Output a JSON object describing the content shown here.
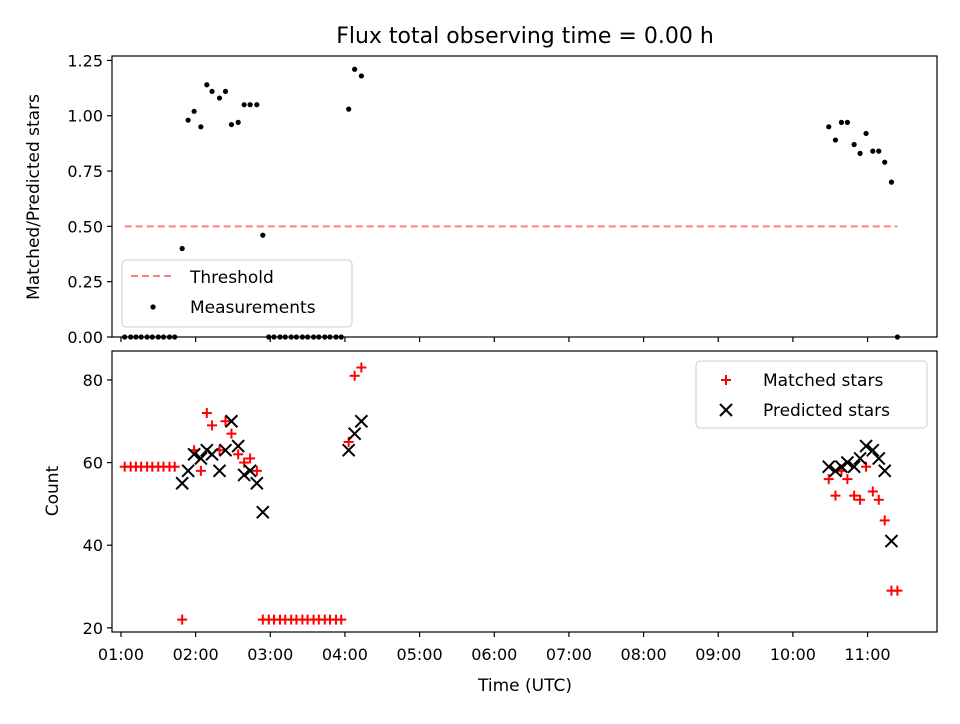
{
  "title": "Flux total observing time = 0.00 h",
  "colors": {
    "threshold": "#ff8080",
    "measurements": "#000000",
    "matched": "#ff0000",
    "predicted": "#000000",
    "axes": "#000000",
    "legend_border": "#cccccc"
  },
  "chart_data": [
    {
      "type": "scatter",
      "ylabel": "Matched/Predicted stars",
      "xlabel": "",
      "xlim": [
        0.88,
        11.93
      ],
      "ylim": [
        0,
        1.27
      ],
      "yticks": [
        0,
        0.25,
        0.5,
        0.75,
        1.0,
        1.25
      ],
      "ytick_labels": [
        "0.00",
        "0.25",
        "0.50",
        "0.75",
        "1.00",
        "1.25"
      ],
      "xticks": [
        1,
        2,
        3,
        4,
        5,
        6,
        7,
        8,
        9,
        10,
        11
      ],
      "grid": false,
      "legend_position": "lower-left",
      "series": [
        {
          "name": "Threshold",
          "type": "line",
          "style": "dashed",
          "x": [
            1.05,
            11.4
          ],
          "y": [
            0.5,
            0.5
          ]
        },
        {
          "name": "Measurements",
          "type": "scatter",
          "marker": "dot",
          "x": [
            1.05,
            1.13,
            1.2,
            1.27,
            1.35,
            1.42,
            1.5,
            1.57,
            1.65,
            1.72,
            1.82,
            1.9,
            1.98,
            2.07,
            2.15,
            2.22,
            2.32,
            2.4,
            2.48,
            2.57,
            2.65,
            2.73,
            2.82,
            2.9,
            2.98,
            3.05,
            3.13,
            3.2,
            3.28,
            3.35,
            3.43,
            3.5,
            3.58,
            3.65,
            3.73,
            3.8,
            3.88,
            3.95,
            4.05,
            4.13,
            4.22,
            10.48,
            10.57,
            10.65,
            10.73,
            10.82,
            10.9,
            10.98,
            11.07,
            11.15,
            11.23,
            11.32,
            11.4
          ],
          "y": [
            0,
            0,
            0,
            0,
            0,
            0,
            0,
            0,
            0,
            0,
            0.4,
            0.98,
            1.02,
            0.95,
            1.14,
            1.11,
            1.08,
            1.11,
            0.96,
            0.97,
            1.05,
            1.05,
            1.05,
            0.46,
            0,
            0,
            0,
            0,
            0,
            0,
            0,
            0,
            0,
            0,
            0,
            0,
            0,
            0,
            1.03,
            1.21,
            1.18,
            0.95,
            0.89,
            0.97,
            0.97,
            0.87,
            0.83,
            0.92,
            0.84,
            0.84,
            0.79,
            0.7,
            0
          ]
        }
      ]
    },
    {
      "type": "scatter",
      "xlabel": "Time (UTC)",
      "ylabel": "Count",
      "xlim": [
        0.88,
        11.93
      ],
      "ylim": [
        19,
        87
      ],
      "yticks": [
        20,
        40,
        60,
        80
      ],
      "ytick_labels": [
        "20",
        "40",
        "60",
        "80"
      ],
      "xticks": [
        1,
        2,
        3,
        4,
        5,
        6,
        7,
        8,
        9,
        10,
        11
      ],
      "xtick_labels": [
        "01:00",
        "02:00",
        "03:00",
        "04:00",
        "05:00",
        "06:00",
        "07:00",
        "08:00",
        "09:00",
        "10:00",
        "11:00"
      ],
      "grid": false,
      "legend_position": "upper-right",
      "series": [
        {
          "name": "Matched stars",
          "marker": "plus",
          "x": [
            1.05,
            1.13,
            1.2,
            1.27,
            1.35,
            1.42,
            1.5,
            1.57,
            1.65,
            1.72,
            1.82,
            1.98,
            2.07,
            2.15,
            2.22,
            2.32,
            2.4,
            2.48,
            2.57,
            2.65,
            2.73,
            2.82,
            2.9,
            2.98,
            3.05,
            3.13,
            3.2,
            3.28,
            3.35,
            3.43,
            3.5,
            3.58,
            3.65,
            3.73,
            3.8,
            3.88,
            3.95,
            4.05,
            4.13,
            4.22,
            10.48,
            10.57,
            10.65,
            10.73,
            10.82,
            10.9,
            10.98,
            11.07,
            11.15,
            11.23,
            11.32,
            11.4
          ],
          "y": [
            59,
            59,
            59,
            59,
            59,
            59,
            59,
            59,
            59,
            59,
            22,
            63,
            58,
            72,
            69,
            63,
            70,
            67,
            62,
            60,
            61,
            58,
            22,
            22,
            22,
            22,
            22,
            22,
            22,
            22,
            22,
            22,
            22,
            22,
            22,
            22,
            22,
            65,
            81,
            83,
            56,
            52,
            58,
            56,
            52,
            51,
            59,
            53,
            51,
            46,
            29,
            29
          ]
        },
        {
          "name": "Predicted stars",
          "marker": "x",
          "x": [
            1.82,
            1.9,
            1.98,
            2.07,
            2.15,
            2.22,
            2.32,
            2.4,
            2.48,
            2.57,
            2.65,
            2.73,
            2.82,
            2.9,
            4.05,
            4.13,
            4.22,
            10.48,
            10.57,
            10.65,
            10.73,
            10.82,
            10.9,
            10.98,
            11.07,
            11.15,
            11.23,
            11.32
          ],
          "y": [
            55,
            58,
            62,
            61,
            63,
            62,
            58,
            63,
            70,
            64,
            57,
            58,
            55,
            48,
            63,
            67,
            70,
            59,
            58,
            59,
            60,
            59,
            61,
            64,
            63,
            61,
            58,
            41
          ]
        }
      ]
    }
  ]
}
